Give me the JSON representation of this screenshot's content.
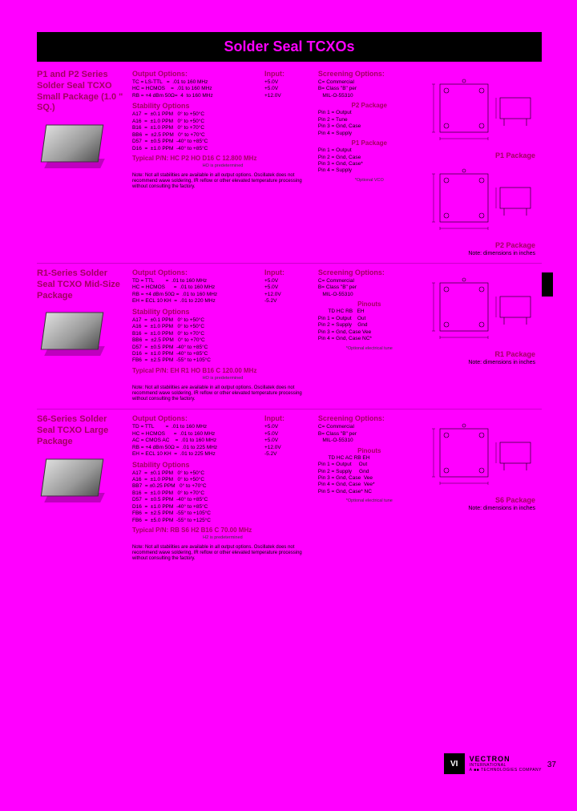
{
  "page_title": "Solder Seal TCXOs",
  "page_number": "37",
  "dim_note": "Note: dimensions in inches",
  "footer": {
    "logo": "VI",
    "company": "VECTRON",
    "sub": "INTERNATIONAL",
    "tagline": "A ■■ TECHNOLOGIES COMPANY"
  },
  "sections": [
    {
      "title": "P1 and P2 Series Solder Seal TCXO Small Package (1.0 \" SQ.)",
      "output_hdr": "Output Options:",
      "input_hdr": "Input:",
      "outputs": "TC = LS-TTL   =  .01 to 160 MHz\nHC = HCMOS    =  .01 to 160 MHz\nRB = +4 dBm 50Ω=  4  to 160 MHz",
      "inputs": "+5.0V\n+5.0V\n+12.0V",
      "stab_hdr": "Stability Options",
      "stability": "A17  =  ±0.1 PPM   0° to +50°C\nA16  =  ±1.0 PPM   0° to +50°C\nB16  =  ±1.0 PPM   0° to +70°C\nBB6  =  ±2.5 PPM   0° to +70°C\nD57  =  ±0.5 PPM  -40° to +85°C\nD16  =  ±1.0 PPM  -40° to +85°C",
      "pn_label": "Typical P/N:",
      "pn": "HC P2 HO D16 C 12.800 MHz",
      "pn_note": "HO is predetermined",
      "screening_hdr": "Screening Options:",
      "screening": "C= Commercial\nB= Class \"B\" per\n   MIL-O-55310",
      "pinouts": [
        {
          "hdr": "P2 Package",
          "rows": "Pin 1 = Output\nPin 2 = Tune\nPin 3 = Gnd, Case\nPin 4 = Supply"
        },
        {
          "hdr": "P1 Package",
          "rows": "Pin 1 = Output\nPin 2 = Gnd, Case\nPin 3 = Gnd, Case*\nPin 4 = Supply"
        }
      ],
      "opt_note": "*Optional VCO",
      "note": "Note: Not all stabilities are available in all output options. Oscillatek does not recommend wave soldering, IR reflow or other elevated temperature processing without consulting the factory.",
      "packages": [
        "P1 Package",
        "P2 Package"
      ]
    },
    {
      "title": "R1-Series Solder Seal TCXO Mid-Size Package",
      "output_hdr": "Output Options:",
      "input_hdr": "Input:",
      "outputs": "TD = TTL        =  .01 to 160 MHz\nHC = HCMOS      =  .01 to 160 MHz\nRB = +4 dBm 50Ω =  .01 to 160 MHz\nEH = ECL 10 KH  =  .01 to 220 MHz",
      "inputs": "+5.0V\n+5.0V\n+12.0V\n-5.2V",
      "stab_hdr": "Stability Options",
      "stability": "A17  =  ±0.1 PPM   0° to +50°C\nA16  =  ±1.0 PPM   0° to +50°C\nB16  =  ±1.0 PPM   0° to +70°C\nBB6  =  ±2.5 PPM   0° to +70°C\nD57  =  ±0.5 PPM  -40° to +85°C\nD16  =  ±1.0 PPM  -40° to +85°C\nFB6  =  ±2.5 PPM  -55° to +105°C",
      "pn_label": "Typical P/N:",
      "pn": "EH R1 HO B16 C 120.00 MHz",
      "pn_note": "HO is predetermined",
      "screening_hdr": "Screening Options:",
      "screening": "C= Commercial\nB= Class \"B\" per\n   MIL-O-55310",
      "pinouts": [
        {
          "hdr": "Pinouts",
          "rows": "       TD HC RB   EH\nPin 1 = Output    Out\nPin 2 = Supply    Gnd\nPin 3 = Gnd, Case Vee\nPin 4 = Gnd, Case NC*"
        }
      ],
      "opt_note": "*Optional electrical tune",
      "note": "Note: Not all stabilities are available in all output options. Oscillatek does not recommend wave soldering, IR reflow or other elevated temperature processing without consulting the factory.",
      "packages": [
        "R1 Package"
      ]
    },
    {
      "title": "S6-Series Solder Seal TCXO Large Package",
      "output_hdr": "Output Options:",
      "input_hdr": "Input:",
      "outputs": "TD = TTL        =  .01 to 160 MHz\nHC = HCMOS      =  .01 to 160 MHz\nAC = CMOS AC    =  .01 to 160 MHz\nRB = +4 dBm 50Ω =  .01 to 225 MHz\nEH = ECL 10 KH  =  .01 to 225 MHz",
      "inputs": "+5.0V\n+5.0V\n+5.0V\n+12.0V\n-5.2V",
      "stab_hdr": "Stability Options",
      "stability": "A17  =  ±0.1 PPM   0° to +50°C\nA16  =  ±1.0 PPM   0° to +50°C\nBB7  = ±0.25 PPM   0° to +70°C\nB16  =  ±1.0 PPM   0° to +70°C\nD57  =  ±0.5 PPM  -40° to +85°C\nD16  =  ±1.0 PPM  -40° to +85°C\nFB6  =  ±2.5 PPM  -55° to +105°C\nFB6  =  ±5.0 PPM  -55° to +125°C",
      "pn_label": "Typical P/N:",
      "pn": "RB S6 H2 B16 C 70.00 MHz",
      "pn_note": "H2 is predetermined",
      "screening_hdr": "Screening Options:",
      "screening": "C= Commercial\nB= Class \"B\" per\n   MIL-O-55310",
      "pinouts": [
        {
          "hdr": "Pinouts",
          "rows": "       TD HC AC RB EH\nPin 1 = Output     Out\nPin 2 = Supply     Gnd\nPin 3 = Gnd, Case  Vee\nPin 4 = Gnd, Case  Vee*\nPin 5 = Gnd, Case* NC"
        }
      ],
      "opt_note": "*Optional electrical tune",
      "note": "Note: Not all stabilities are available in all output options. Oscillatek does not recommend wave soldering, IR reflow or other elevated temperature processing without consulting the factory.",
      "packages": [
        "S6 Package"
      ]
    }
  ]
}
